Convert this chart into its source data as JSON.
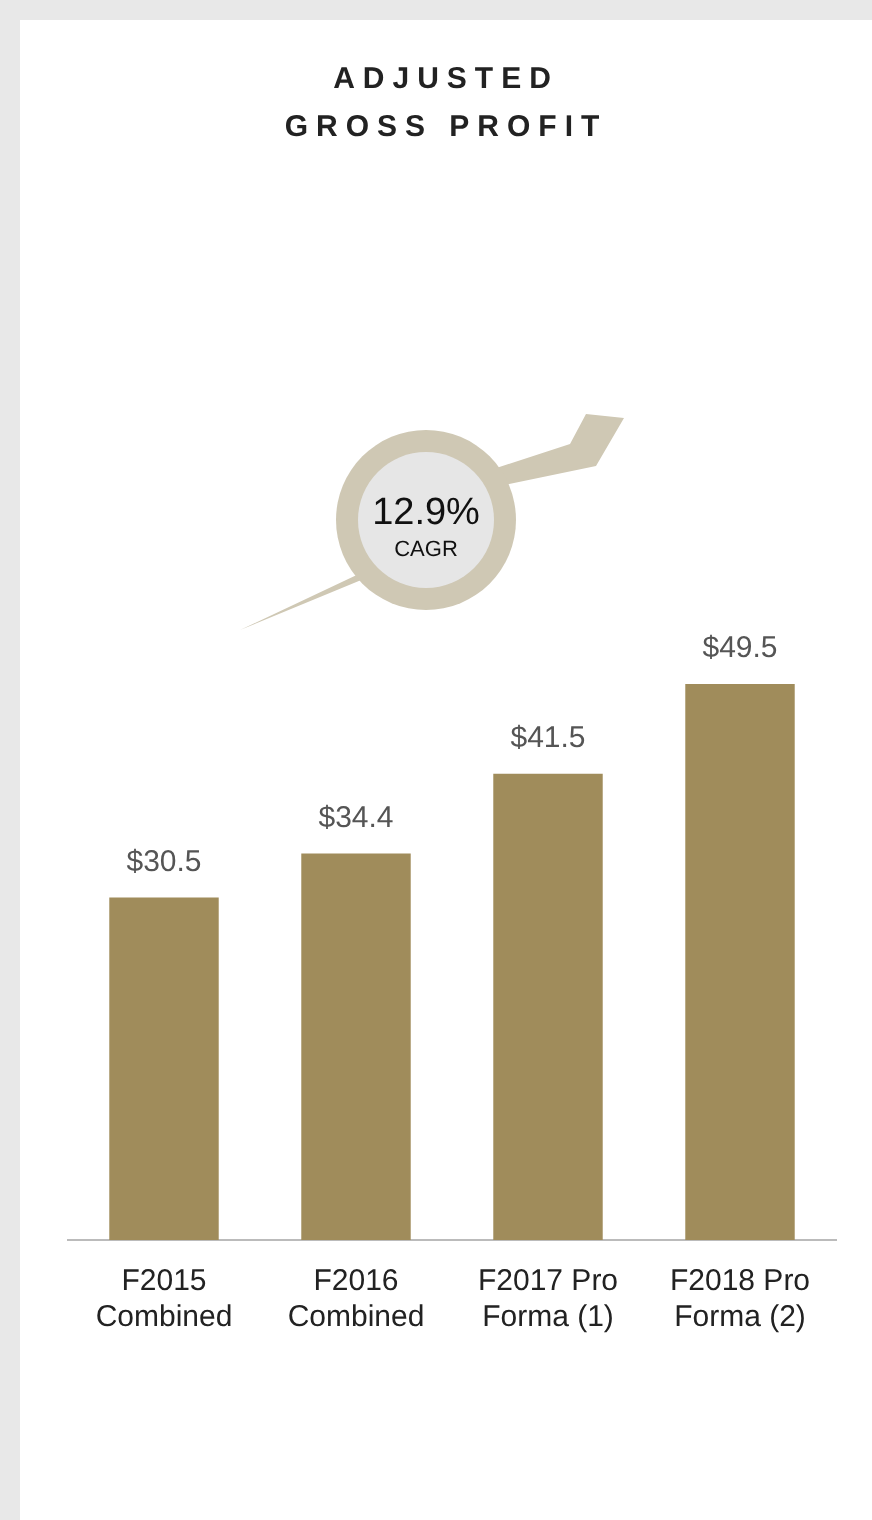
{
  "chart_data": {
    "type": "bar",
    "title": "ADJUSTED GROSS PROFIT",
    "categories": [
      "F2015 Combined",
      "F2016 Combined",
      "F2017 Pro Forma (1)",
      "F2018 Pro Forma (2)"
    ],
    "values": [
      30.5,
      34.4,
      41.5,
      49.5
    ],
    "color": "#a08c5b",
    "tick_labels": "x",
    "value_labels": [
      "$30.5",
      "$34.4",
      "$41.5",
      "$49.5"
    ],
    "annotations": [
      "12.9%",
      "CAGR"
    ],
    "grid": false,
    "legend": false
  }
}
